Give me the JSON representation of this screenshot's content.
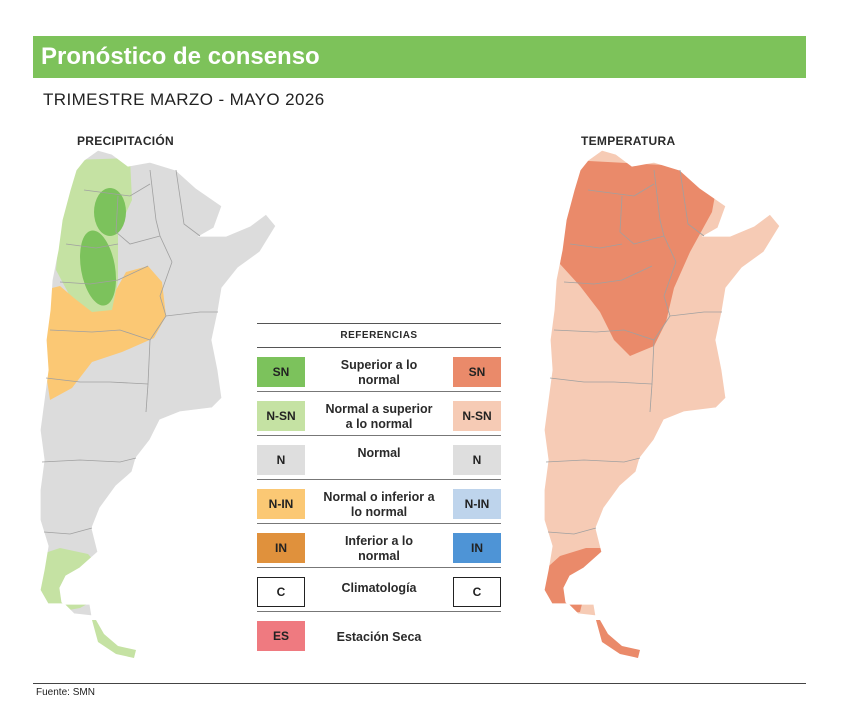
{
  "header": {
    "title": "Pronóstico de consenso",
    "subtitle": "TRIMESTRE MARZO - MAYO 2026"
  },
  "maps": {
    "precipitation_label": "PRECIPITACIÓN",
    "temperature_label": "TEMPERATURA"
  },
  "legend": {
    "title": "REFERENCIAS",
    "rows": [
      {
        "left_code": "SN",
        "left_color": "#7cc25c",
        "text_line1": "Superior a lo",
        "text_line2": "normal",
        "right_code": "SN",
        "right_color": "#ea8a6a"
      },
      {
        "left_code": "N-SN",
        "left_color": "#c5e2a3",
        "text_line1": "Normal a superior",
        "text_line2": "a lo normal",
        "right_code": "N-SN",
        "right_color": "#f6cbb5"
      },
      {
        "left_code": "N",
        "left_color": "#dedede",
        "text_line1": "Normal",
        "text_line2": "",
        "right_code": "N",
        "right_color": "#dedede"
      },
      {
        "left_code": "N-IN",
        "left_color": "#fbc874",
        "text_line1": "Normal o inferior a",
        "text_line2": "lo normal",
        "right_code": "N-IN",
        "right_color": "#bed4ec"
      },
      {
        "left_code": "IN",
        "left_color": "#e0913c",
        "text_line1": "Inferior a lo",
        "text_line2": "normal",
        "right_code": "IN",
        "right_color": "#4e94d6"
      },
      {
        "left_code": "C",
        "left_color": "#ffffff",
        "text_line1": "Climatología",
        "text_line2": "",
        "right_code": "C",
        "right_color": "#ffffff"
      },
      {
        "left_code": "ES",
        "left_color": "#ef7a80",
        "text_line1": "Estación Seca",
        "text_line2": "",
        "right_code": "",
        "right_color": ""
      }
    ]
  },
  "footer": {
    "source": "Fuente: SMN"
  }
}
